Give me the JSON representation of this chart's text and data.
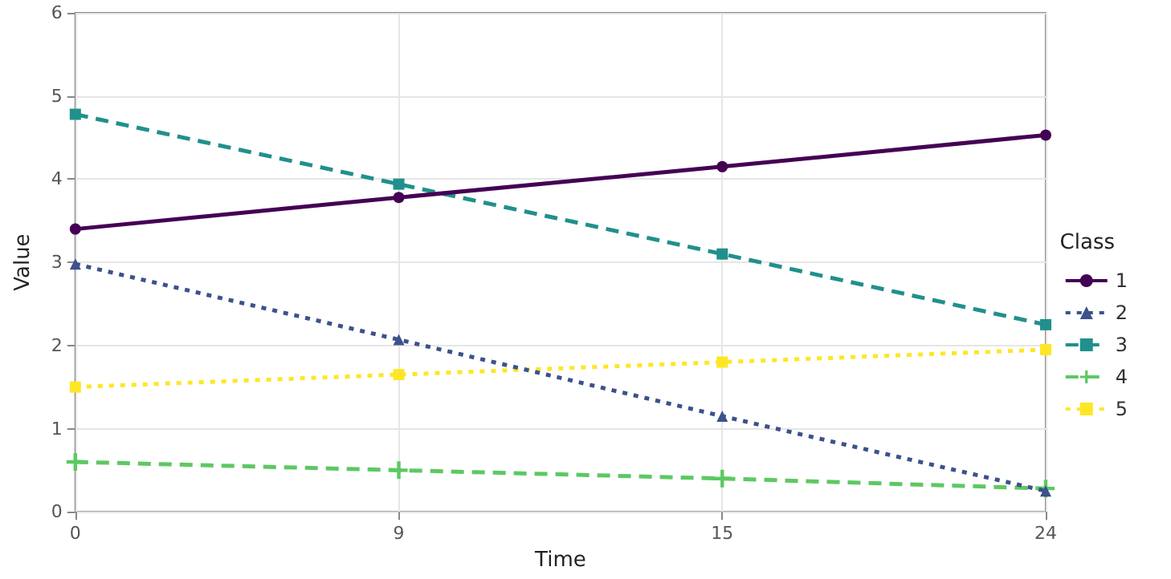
{
  "chart_data": {
    "type": "line",
    "xlabel": "Time",
    "ylabel": "Value",
    "legend_title": "Class",
    "categories": [
      "0",
      "9",
      "15",
      "24"
    ],
    "ylim": [
      0,
      6
    ],
    "yticks": [
      0,
      1,
      2,
      3,
      4,
      5,
      6
    ],
    "grid": true,
    "legend": "right",
    "series": [
      {
        "name": "1",
        "color": "#440154",
        "values": [
          3.4,
          3.78,
          4.15,
          4.53
        ],
        "marker": "circle",
        "line_style": "solid"
      },
      {
        "name": "2",
        "color": "#3b528b",
        "values": [
          2.98,
          2.07,
          1.15,
          0.25
        ],
        "marker": "triangle",
        "line_style": "dotted"
      },
      {
        "name": "3",
        "color": "#21908c",
        "values": [
          4.78,
          3.94,
          3.1,
          2.25
        ],
        "marker": "square",
        "line_style": "dashed"
      },
      {
        "name": "4",
        "color": "#5dc863",
        "values": [
          0.6,
          0.5,
          0.4,
          0.28
        ],
        "marker": "cross",
        "line_style": "dashed"
      },
      {
        "name": "5",
        "color": "#fde725",
        "values": [
          1.5,
          1.65,
          1.8,
          1.95
        ],
        "marker": "square",
        "line_style": "dotted"
      }
    ]
  }
}
